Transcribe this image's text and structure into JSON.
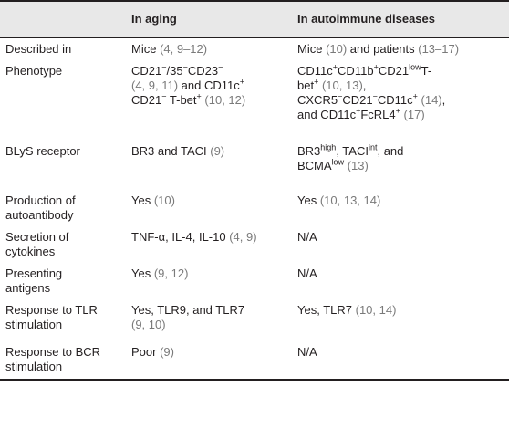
{
  "header": {
    "col1": "",
    "col2": "In aging",
    "col3": "In autoimmune diseases"
  },
  "rows": [
    {
      "label": "Described in",
      "aging": "Mice (4, 9–12)",
      "autoimmune": "Mice (10) and patients (13–17)"
    },
    {
      "label": "Phenotype",
      "aging": "CD21⁻/35⁻CD23⁻ (4, 9, 11) and CD11c⁺ CD21⁻ T-bet⁺ (10, 12)",
      "autoimmune": "CD11c⁺CD11b⁺CD21lowT-bet⁺ (10, 13), CXCR5⁻CD21⁻CD11c⁺ (14), and CD11c⁺FcRL4⁺ (17)"
    },
    {
      "label": "BLyS receptor",
      "aging": "BR3 and TACI (9)",
      "autoimmune": "BR3high, TACIint, and BCMAlow (13)"
    },
    {
      "label": "Production of autoantibody",
      "aging": "Yes (10)",
      "autoimmune": "Yes (10, 13, 14)"
    },
    {
      "label": "Secretion of cytokines",
      "aging": "TNF-α, IL-4, IL-10 (4, 9)",
      "autoimmune": "N/A"
    },
    {
      "label": "Presenting antigens",
      "aging": "Yes (9, 12)",
      "autoimmune": "N/A"
    },
    {
      "label": "Response to TLR stimulation",
      "aging": "Yes, TLR9, and TLR7 (9, 10)",
      "autoimmune": "Yes, TLR7 (10, 14)"
    },
    {
      "label": "Response to BCR stimulation",
      "aging": "Poor (9)",
      "autoimmune": "N/A"
    }
  ]
}
